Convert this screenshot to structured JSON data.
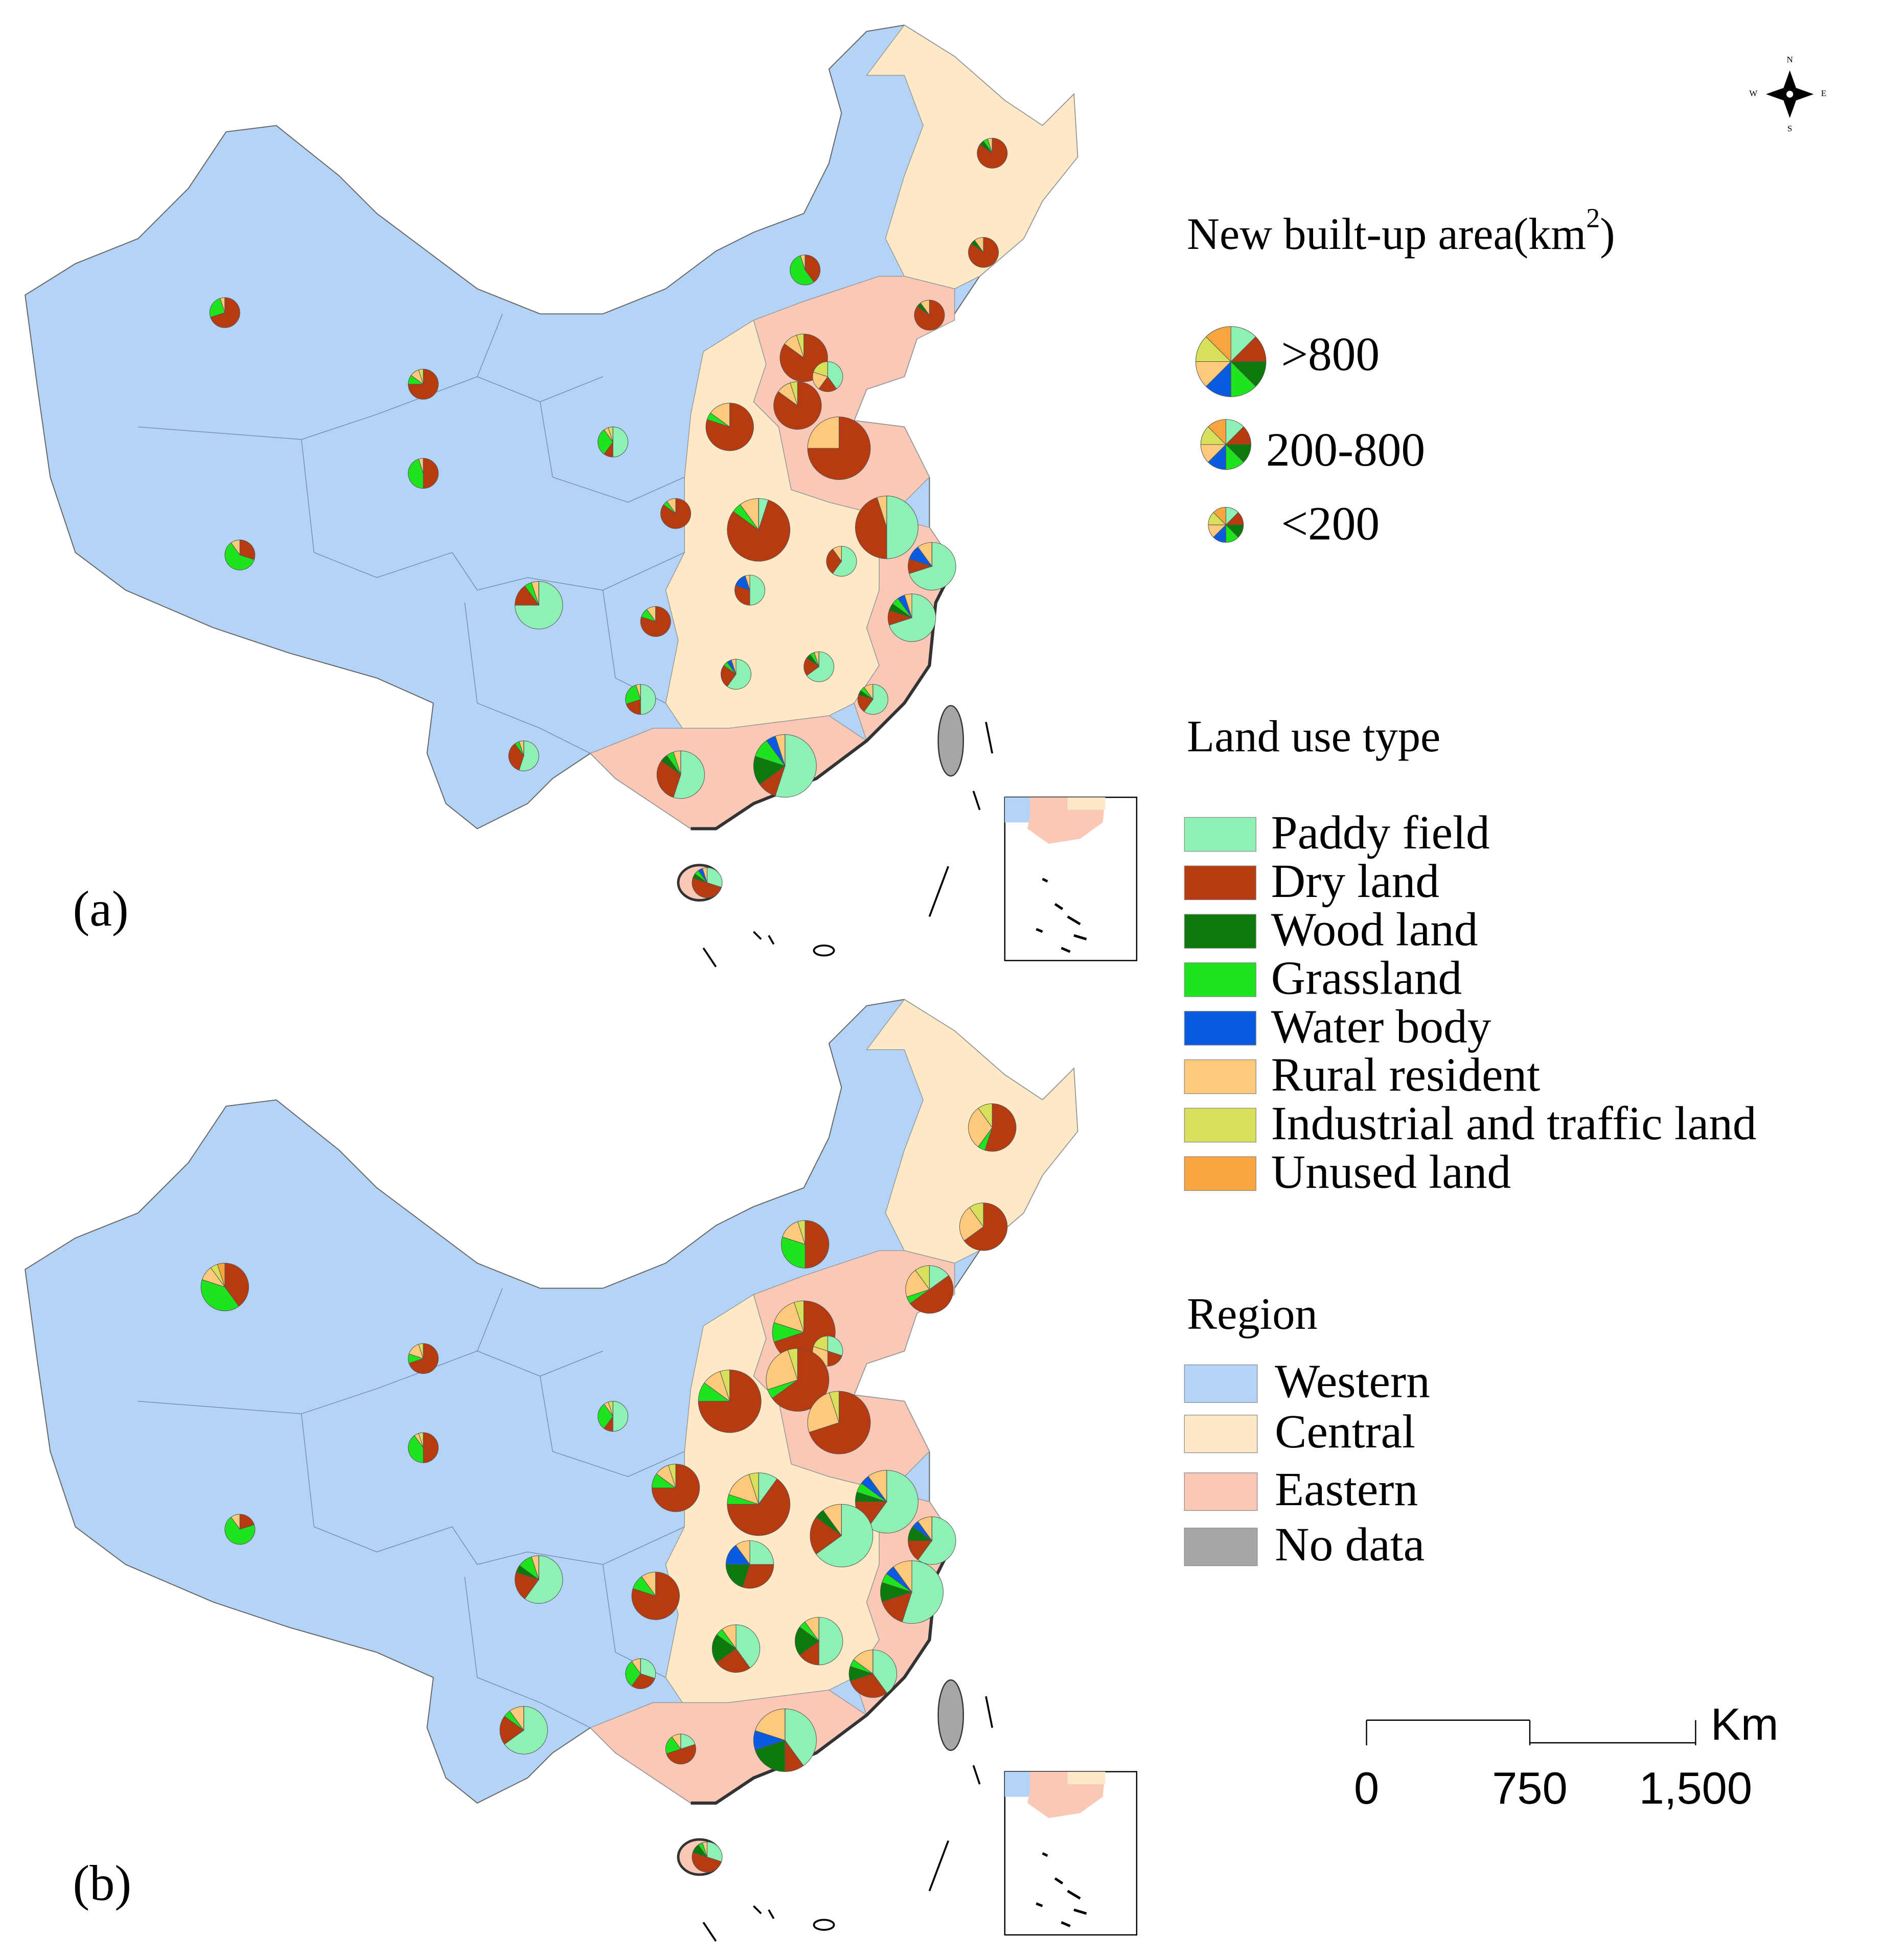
{
  "panels": [
    {
      "label": "(a)",
      "pies": [
        {
          "size_class": 2,
          "shares": [
            0,
            85,
            5,
            5,
            0,
            5,
            0,
            0
          ]
        },
        {
          "size_class": 2,
          "shares": [
            0,
            85,
            5,
            0,
            0,
            10,
            0,
            0
          ]
        },
        {
          "size_class": 2,
          "shares": [
            0,
            40,
            0,
            55,
            0,
            5,
            0,
            0
          ]
        },
        {
          "size_class": 2,
          "shares": [
            0,
            70,
            0,
            25,
            0,
            5,
            0,
            0
          ]
        },
        {
          "size_class": 2,
          "shares": [
            0,
            85,
            5,
            0,
            0,
            10,
            0,
            0
          ]
        },
        {
          "size_class": 2,
          "shares": [
            0,
            75,
            0,
            10,
            0,
            10,
            5,
            0
          ]
        },
        {
          "size_class": 1,
          "shares": [
            0,
            85,
            0,
            0,
            0,
            10,
            5,
            0
          ]
        },
        {
          "size_class": 2,
          "shares": [
            40,
            20,
            0,
            0,
            0,
            20,
            20,
            0
          ]
        },
        {
          "size_class": 1,
          "shares": [
            0,
            85,
            0,
            0,
            0,
            10,
            5,
            0
          ]
        },
        {
          "size_class": 1,
          "shares": [
            0,
            80,
            0,
            5,
            0,
            15,
            0,
            0
          ]
        },
        {
          "size_class": 0,
          "shares": [
            0,
            75,
            0,
            0,
            0,
            25,
            0,
            0
          ]
        },
        {
          "size_class": 2,
          "shares": [
            50,
            10,
            0,
            30,
            0,
            5,
            5,
            0
          ]
        },
        {
          "size_class": 2,
          "shares": [
            0,
            50,
            0,
            45,
            0,
            5,
            0,
            0
          ]
        },
        {
          "size_class": 2,
          "shares": [
            0,
            85,
            0,
            5,
            0,
            10,
            0,
            0
          ]
        },
        {
          "size_class": 0,
          "shares": [
            5,
            80,
            0,
            5,
            0,
            10,
            0,
            0
          ]
        },
        {
          "size_class": 0,
          "shares": [
            50,
            45,
            0,
            0,
            0,
            5,
            0,
            0
          ]
        },
        {
          "size_class": 2,
          "shares": [
            0,
            30,
            0,
            60,
            0,
            10,
            0,
            0
          ]
        },
        {
          "size_class": 2,
          "shares": [
            60,
            30,
            0,
            0,
            0,
            10,
            0,
            0
          ]
        },
        {
          "size_class": 1,
          "shares": [
            70,
            10,
            0,
            0,
            10,
            10,
            0,
            0
          ]
        },
        {
          "size_class": 1,
          "shares": [
            75,
            15,
            0,
            5,
            0,
            5,
            0,
            0
          ]
        },
        {
          "size_class": 2,
          "shares": [
            50,
            30,
            0,
            0,
            15,
            5,
            0,
            0
          ]
        },
        {
          "size_class": 2,
          "shares": [
            0,
            80,
            0,
            10,
            0,
            10,
            0,
            0
          ]
        },
        {
          "size_class": 1,
          "shares": [
            70,
            10,
            5,
            5,
            5,
            5,
            0,
            0
          ]
        },
        {
          "size_class": 2,
          "shares": [
            60,
            25,
            0,
            5,
            5,
            5,
            0,
            0
          ]
        },
        {
          "size_class": 2,
          "shares": [
            65,
            20,
            5,
            5,
            0,
            5,
            0,
            0
          ]
        },
        {
          "size_class": 2,
          "shares": [
            50,
            20,
            0,
            25,
            0,
            5,
            0,
            0
          ]
        },
        {
          "size_class": 2,
          "shares": [
            60,
            20,
            5,
            5,
            0,
            10,
            0,
            0
          ]
        },
        {
          "size_class": 2,
          "shares": [
            55,
            35,
            0,
            5,
            0,
            5,
            0,
            0
          ]
        },
        {
          "size_class": 1,
          "shares": [
            55,
            30,
            5,
            5,
            0,
            5,
            0,
            0
          ]
        },
        {
          "size_class": 0,
          "shares": [
            55,
            10,
            15,
            10,
            5,
            5,
            0,
            0
          ]
        },
        {
          "size_class": 2,
          "shares": [
            30,
            50,
            5,
            5,
            5,
            5,
            0,
            0
          ]
        }
      ]
    },
    {
      "label": "(b)",
      "pies": [
        {
          "size_class": 1,
          "shares": [
            0,
            55,
            0,
            5,
            0,
            30,
            10,
            0
          ]
        },
        {
          "size_class": 1,
          "shares": [
            0,
            65,
            0,
            0,
            0,
            25,
            10,
            0
          ]
        },
        {
          "size_class": 1,
          "shares": [
            0,
            50,
            0,
            30,
            0,
            15,
            5,
            0
          ]
        },
        {
          "size_class": 1,
          "shares": [
            0,
            40,
            0,
            40,
            0,
            10,
            5,
            5
          ]
        },
        {
          "size_class": 1,
          "shares": [
            15,
            50,
            0,
            5,
            0,
            20,
            10,
            0
          ]
        },
        {
          "size_class": 2,
          "shares": [
            0,
            70,
            0,
            10,
            0,
            15,
            5,
            0
          ]
        },
        {
          "size_class": 0,
          "shares": [
            0,
            70,
            0,
            10,
            0,
            15,
            5,
            0
          ]
        },
        {
          "size_class": 2,
          "shares": [
            30,
            20,
            0,
            0,
            0,
            30,
            20,
            0
          ]
        },
        {
          "size_class": 0,
          "shares": [
            0,
            65,
            0,
            5,
            0,
            25,
            5,
            0
          ]
        },
        {
          "size_class": 0,
          "shares": [
            0,
            75,
            0,
            10,
            0,
            10,
            5,
            0
          ]
        },
        {
          "size_class": 0,
          "shares": [
            0,
            70,
            0,
            0,
            0,
            25,
            5,
            0
          ]
        },
        {
          "size_class": 2,
          "shares": [
            50,
            10,
            0,
            30,
            0,
            5,
            5,
            0
          ]
        },
        {
          "size_class": 2,
          "shares": [
            0,
            50,
            0,
            40,
            0,
            5,
            5,
            0
          ]
        },
        {
          "size_class": 1,
          "shares": [
            0,
            75,
            0,
            10,
            0,
            10,
            5,
            0
          ]
        },
        {
          "size_class": 0,
          "shares": [
            10,
            65,
            0,
            5,
            0,
            15,
            5,
            0
          ]
        },
        {
          "size_class": 0,
          "shares": [
            60,
            15,
            5,
            5,
            5,
            10,
            0,
            0
          ]
        },
        {
          "size_class": 2,
          "shares": [
            0,
            20,
            0,
            70,
            0,
            10,
            0,
            0
          ]
        },
        {
          "size_class": 0,
          "shares": [
            65,
            20,
            5,
            0,
            0,
            10,
            0,
            0
          ]
        },
        {
          "size_class": 1,
          "shares": [
            60,
            15,
            10,
            0,
            5,
            10,
            0,
            0
          ]
        },
        {
          "size_class": 1,
          "shares": [
            60,
            20,
            5,
            10,
            0,
            5,
            0,
            0
          ]
        },
        {
          "size_class": 1,
          "shares": [
            25,
            30,
            20,
            0,
            15,
            10,
            0,
            0
          ]
        },
        {
          "size_class": 1,
          "shares": [
            0,
            80,
            0,
            10,
            0,
            10,
            0,
            0
          ]
        },
        {
          "size_class": 0,
          "shares": [
            55,
            15,
            10,
            5,
            5,
            10,
            0,
            0
          ]
        },
        {
          "size_class": 1,
          "shares": [
            40,
            25,
            20,
            5,
            0,
            10,
            0,
            0
          ]
        },
        {
          "size_class": 1,
          "shares": [
            50,
            15,
            20,
            5,
            0,
            10,
            0,
            0
          ]
        },
        {
          "size_class": 2,
          "shares": [
            30,
            30,
            0,
            30,
            0,
            10,
            0,
            0
          ]
        },
        {
          "size_class": 1,
          "shares": [
            40,
            30,
            10,
            5,
            0,
            15,
            0,
            0
          ]
        },
        {
          "size_class": 1,
          "shares": [
            65,
            20,
            0,
            5,
            0,
            10,
            0,
            0
          ]
        },
        {
          "size_class": 2,
          "shares": [
            20,
            50,
            0,
            20,
            0,
            10,
            0,
            0
          ]
        },
        {
          "size_class": 0,
          "shares": [
            40,
            10,
            20,
            0,
            10,
            20,
            0,
            0
          ]
        },
        {
          "size_class": 2,
          "shares": [
            30,
            50,
            10,
            5,
            0,
            5,
            0,
            0
          ]
        }
      ]
    }
  ],
  "size_legend": {
    "title": [
      "New built-up area(km",
      "2",
      ")"
    ],
    "classes": [
      ">800",
      "200-800",
      "<200"
    ]
  },
  "land_use": {
    "title": "Land use type",
    "types": [
      {
        "name": "Paddy field",
        "color": "#8ff0b4"
      },
      {
        "name": "Dry land",
        "color": "#b83a10"
      },
      {
        "name": "Wood land",
        "color": "#0b7a0b"
      },
      {
        "name": "Grassland",
        "color": "#1ee41e"
      },
      {
        "name": "Water body",
        "color": "#0a5be0"
      },
      {
        "name": "Rural resident",
        "color": "#fdc97a"
      },
      {
        "name": "Industrial and traffic land",
        "color": "#d8e05a"
      },
      {
        "name": "Unused land",
        "color": "#f7a53c"
      }
    ]
  },
  "region": {
    "title": "Region",
    "types": [
      {
        "name": "Western",
        "color": "#b3d3f7"
      },
      {
        "name": "Central",
        "color": "#fde9c6"
      },
      {
        "name": "Eastern",
        "color": "#f9c8b6"
      },
      {
        "name": "No data",
        "color": "#a6a6a6"
      }
    ]
  },
  "scale_bar": {
    "labels": [
      "0",
      "750",
      "1,500"
    ],
    "unit": "Km"
  },
  "compass": {
    "n": "N",
    "s": "S",
    "w": "W",
    "e": "E"
  }
}
